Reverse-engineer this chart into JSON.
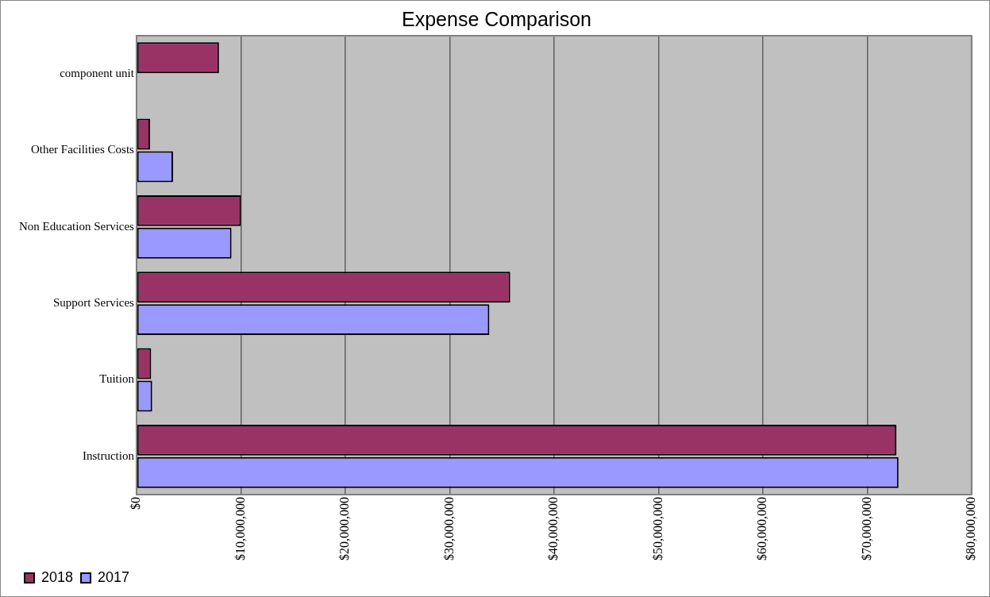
{
  "chart_data": {
    "type": "bar",
    "orientation": "horizontal",
    "title": "Expense Comparison",
    "categories": [
      "component unit",
      "Other Facilities Costs",
      "Non Education Services",
      "Support Services",
      "Tuition",
      "Instruction"
    ],
    "series": [
      {
        "name": "2018",
        "color": "#993366",
        "values": [
          7900000,
          1300000,
          10000000,
          35800000,
          1400000,
          72800000
        ]
      },
      {
        "name": "2017",
        "color": "#9999ff",
        "values": [
          null,
          3500000,
          9100000,
          33800000,
          1500000,
          73000000
        ]
      }
    ],
    "xlim": [
      0,
      80000000
    ],
    "xticks": [
      {
        "value": 0,
        "label": "$0"
      },
      {
        "value": 10000000,
        "label": "$10,000,000"
      },
      {
        "value": 20000000,
        "label": "$20,000,000"
      },
      {
        "value": 30000000,
        "label": "$30,000,000"
      },
      {
        "value": 40000000,
        "label": "$40,000,000"
      },
      {
        "value": 50000000,
        "label": "$50,000,000"
      },
      {
        "value": 60000000,
        "label": "$60,000,000"
      },
      {
        "value": 70000000,
        "label": "$70,000,000"
      },
      {
        "value": 80000000,
        "label": "$80,000,000"
      }
    ],
    "grid": "x",
    "legend": "bottom left"
  }
}
